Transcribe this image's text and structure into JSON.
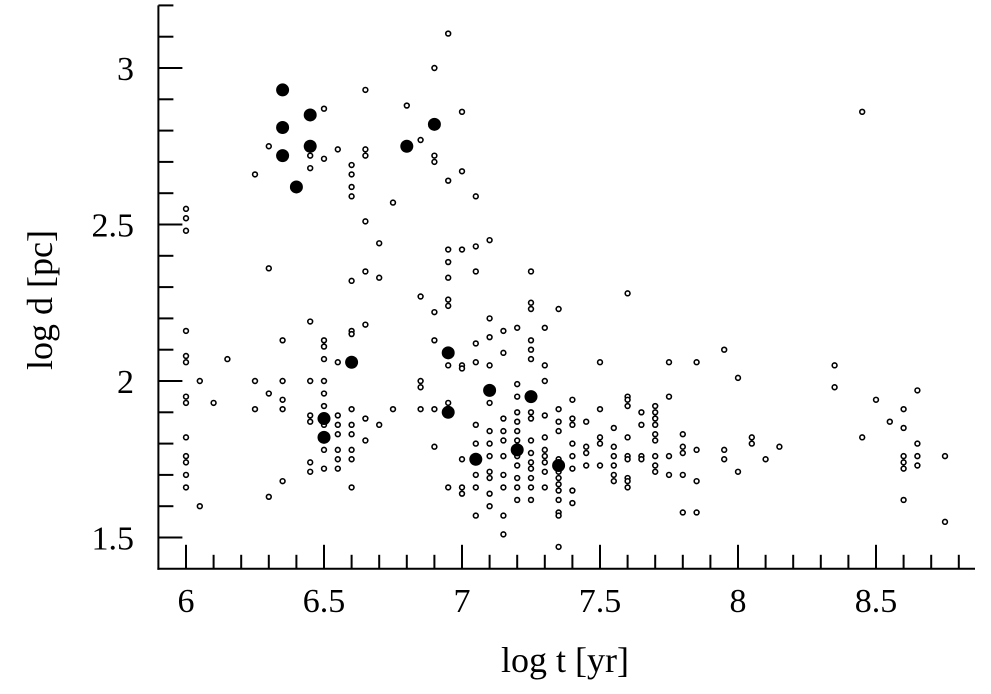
{
  "chart_data": {
    "type": "scatter",
    "title": "",
    "xlabel": "log t [yr]",
    "ylabel": "log d [pc]",
    "xlim": [
      5.9,
      8.9
    ],
    "ylim": [
      1.4,
      3.2
    ],
    "xticks": [
      6,
      6.5,
      7,
      7.5,
      8,
      8.5
    ],
    "xtick_labels": [
      "6",
      "6.5",
      "7",
      "7.5",
      "8",
      "8.5"
    ],
    "yticks": [
      1.5,
      2,
      2.5,
      3
    ],
    "ytick_labels": [
      "1.5",
      "2",
      "2.5",
      "3"
    ],
    "grid": false,
    "legend": "none",
    "colors": {
      "axis": "#000000",
      "marker": "#000000"
    },
    "series": [
      {
        "name": "filled",
        "marker": "filled-circle-large",
        "points": [
          [
            6.35,
            2.93
          ],
          [
            6.35,
            2.81
          ],
          [
            6.35,
            2.72
          ],
          [
            6.45,
            2.85
          ],
          [
            6.45,
            2.75
          ],
          [
            6.4,
            2.62
          ],
          [
            6.8,
            2.75
          ],
          [
            6.9,
            2.82
          ],
          [
            6.6,
            2.06
          ],
          [
            6.5,
            1.88
          ],
          [
            6.5,
            1.82
          ],
          [
            6.95,
            2.09
          ],
          [
            6.95,
            1.9
          ],
          [
            7.1,
            1.97
          ],
          [
            7.25,
            1.95
          ],
          [
            7.35,
            1.73
          ],
          [
            7.2,
            1.78
          ],
          [
            7.05,
            1.75
          ]
        ]
      },
      {
        "name": "open",
        "marker": "open-circle-small",
        "columns": [
          [
            6.0,
            [
              2.55,
              2.52,
              2.48,
              2.16,
              2.08,
              2.06,
              1.95,
              1.93,
              1.82,
              1.76,
              1.74,
              1.7,
              1.66
            ]
          ],
          [
            6.05,
            [
              2.0,
              1.6
            ]
          ],
          [
            6.1,
            [
              1.93
            ]
          ],
          [
            6.15,
            [
              2.07
            ]
          ],
          [
            6.25,
            [
              2.66,
              2.0,
              1.91
            ]
          ],
          [
            6.3,
            [
              2.75,
              2.36,
              1.96,
              1.63
            ]
          ],
          [
            6.35,
            [
              2.13,
              2.0,
              1.94,
              1.91,
              1.68
            ]
          ],
          [
            6.45,
            [
              2.72,
              2.68,
              2.19,
              2.0,
              1.89,
              1.87,
              1.74,
              1.71
            ]
          ],
          [
            6.5,
            [
              2.87,
              2.71,
              2.13,
              2.11,
              2.07,
              2.0,
              1.96,
              1.92,
              1.86,
              1.83,
              1.78,
              1.72
            ]
          ],
          [
            6.55,
            [
              2.74,
              2.06,
              1.89,
              1.86,
              1.83,
              1.78,
              1.75,
              1.72
            ]
          ],
          [
            6.6,
            [
              2.69,
              2.66,
              2.62,
              2.59,
              2.32,
              2.16,
              2.15,
              1.91,
              1.86,
              1.83,
              1.78,
              1.75,
              1.66
            ]
          ],
          [
            6.65,
            [
              2.93,
              2.74,
              2.72,
              2.51,
              2.35,
              2.18,
              1.88,
              1.81
            ]
          ],
          [
            6.7,
            [
              2.44,
              2.33,
              1.86
            ]
          ],
          [
            6.75,
            [
              2.57,
              1.91
            ]
          ],
          [
            6.8,
            [
              2.88
            ]
          ],
          [
            6.85,
            [
              2.77,
              2.27,
              2.0,
              1.98,
              1.91
            ]
          ],
          [
            6.9,
            [
              3.0,
              2.72,
              2.7,
              2.22,
              2.13,
              1.91,
              1.79
            ]
          ],
          [
            6.95,
            [
              3.11,
              2.64,
              2.42,
              2.38,
              2.33,
              2.26,
              2.24,
              2.05,
              1.93,
              1.66
            ]
          ],
          [
            7.0,
            [
              2.86,
              2.67,
              2.42,
              2.05,
              2.04,
              1.75,
              1.66,
              1.64
            ]
          ],
          [
            7.05,
            [
              2.59,
              2.43,
              2.35,
              2.12,
              2.06,
              1.86,
              1.8,
              1.74,
              1.7,
              1.66,
              1.57
            ]
          ],
          [
            7.1,
            [
              2.45,
              2.2,
              2.14,
              2.05,
              1.93,
              1.84,
              1.8,
              1.76,
              1.71,
              1.69,
              1.64,
              1.6
            ]
          ],
          [
            7.15,
            [
              2.16,
              2.09,
              1.88,
              1.84,
              1.81,
              1.76,
              1.7,
              1.66,
              1.57,
              1.51
            ]
          ],
          [
            7.2,
            [
              2.17,
              1.99,
              1.95,
              1.9,
              1.87,
              1.84,
              1.81,
              1.76,
              1.73,
              1.69,
              1.66,
              1.62
            ]
          ],
          [
            7.25,
            [
              2.35,
              2.25,
              2.23,
              2.13,
              2.1,
              2.07,
              1.9,
              1.88,
              1.81,
              1.77,
              1.74,
              1.72,
              1.69,
              1.66,
              1.62
            ]
          ],
          [
            7.3,
            [
              2.17,
              2.05,
              2.0,
              1.89,
              1.82,
              1.78,
              1.76,
              1.74,
              1.71,
              1.66
            ]
          ],
          [
            7.35,
            [
              2.23,
              1.91,
              1.87,
              1.84,
              1.75,
              1.71,
              1.69,
              1.67,
              1.65,
              1.62,
              1.58,
              1.57,
              1.47
            ]
          ],
          [
            7.4,
            [
              1.94,
              1.88,
              1.86,
              1.8,
              1.76,
              1.72,
              1.65,
              1.61
            ]
          ],
          [
            7.45,
            [
              1.87,
              1.79,
              1.77,
              1.73
            ]
          ],
          [
            7.5,
            [
              2.06,
              1.91,
              1.82,
              1.8,
              1.73
            ]
          ],
          [
            7.55,
            [
              1.85,
              1.79,
              1.76,
              1.73,
              1.7,
              1.68
            ]
          ],
          [
            7.6,
            [
              2.28,
              1.95,
              1.94,
              1.92,
              1.82,
              1.76,
              1.75,
              1.69,
              1.68,
              1.66
            ]
          ],
          [
            7.65,
            [
              1.9,
              1.86,
              1.76,
              1.75
            ]
          ],
          [
            7.7,
            [
              1.92,
              1.9,
              1.88,
              1.86,
              1.83,
              1.81,
              1.76,
              1.73,
              1.71
            ]
          ],
          [
            7.75,
            [
              2.06,
              1.95,
              1.76,
              1.7
            ]
          ],
          [
            7.8,
            [
              1.83,
              1.79,
              1.77,
              1.7,
              1.58
            ]
          ],
          [
            7.85,
            [
              2.06,
              1.78,
              1.68,
              1.58
            ]
          ],
          [
            7.95,
            [
              2.1,
              1.78,
              1.75
            ]
          ],
          [
            8.0,
            [
              2.01,
              1.71
            ]
          ],
          [
            8.05,
            [
              1.82,
              1.8
            ]
          ],
          [
            8.1,
            [
              1.75
            ]
          ],
          [
            8.15,
            [
              1.79
            ]
          ],
          [
            8.35,
            [
              2.05,
              1.98
            ]
          ],
          [
            8.45,
            [
              2.86,
              1.82
            ]
          ],
          [
            8.5,
            [
              1.94
            ]
          ],
          [
            8.55,
            [
              1.87
            ]
          ],
          [
            8.6,
            [
              1.91,
              1.85,
              1.76,
              1.74,
              1.72,
              1.62
            ]
          ],
          [
            8.65,
            [
              1.97,
              1.8,
              1.76,
              1.73
            ]
          ],
          [
            8.75,
            [
              1.76,
              1.55
            ]
          ]
        ]
      }
    ]
  }
}
